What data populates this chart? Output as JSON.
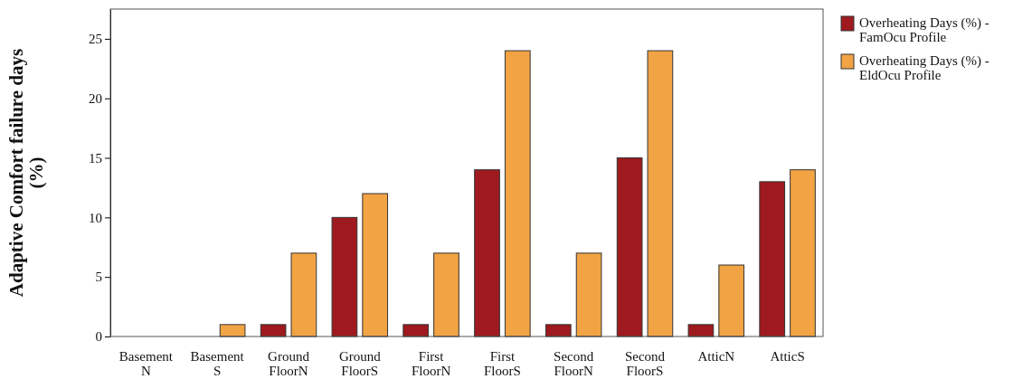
{
  "chart_data": {
    "type": "bar",
    "ylabel": "Adaptive Comfort failure days (%)",
    "categories": [
      "Basement N",
      "Basement S",
      "Ground FloorN",
      "Ground FloorS",
      "First FloorN",
      "First FloorS",
      "Second FloorN",
      "Second FloorS",
      "AtticN",
      "AtticS"
    ],
    "series": [
      {
        "name": "Overheating Days (%) - FamOcu Profile",
        "color": "#9e1a1e",
        "values": [
          0,
          0,
          1,
          10,
          1,
          14,
          1,
          15,
          1,
          13
        ]
      },
      {
        "name": "Overheating Days (%) - EldOcu Profile",
        "color": "#f2a444",
        "values": [
          0,
          1,
          7,
          12,
          7,
          24,
          7,
          24,
          6,
          14
        ]
      }
    ],
    "ylim": [
      0,
      27.5
    ],
    "yticks": [
      0,
      5,
      10,
      15,
      20,
      25
    ],
    "legend": "top right"
  }
}
